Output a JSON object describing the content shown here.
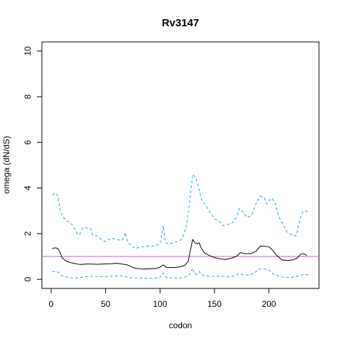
{
  "chart_data": {
    "type": "line",
    "title": "Rv3147",
    "xlabel": "codon",
    "ylabel": "omega (dN/dS)",
    "xlim": [
      -8.5,
      246
    ],
    "ylim": [
      -0.4,
      10.4
    ],
    "xticks": [
      0,
      50,
      100,
      150,
      200
    ],
    "yticks": [
      0,
      2,
      4,
      6,
      8,
      10
    ],
    "grid": false,
    "reference_line": {
      "y": 1,
      "color": "#c060c0"
    },
    "series": [
      {
        "style": "solid",
        "color": "#000000",
        "points": [
          [
            1,
            1.35
          ],
          [
            4,
            1.38
          ],
          [
            6,
            1.35
          ],
          [
            8,
            1.2
          ],
          [
            10,
            0.95
          ],
          [
            13,
            0.82
          ],
          [
            17,
            0.74
          ],
          [
            21,
            0.7
          ],
          [
            25,
            0.66
          ],
          [
            28,
            0.65
          ],
          [
            32,
            0.67
          ],
          [
            36,
            0.67
          ],
          [
            42,
            0.66
          ],
          [
            48,
            0.67
          ],
          [
            55,
            0.68
          ],
          [
            60,
            0.7
          ],
          [
            65,
            0.67
          ],
          [
            70,
            0.63
          ],
          [
            74,
            0.54
          ],
          [
            78,
            0.48
          ],
          [
            83,
            0.45
          ],
          [
            90,
            0.46
          ],
          [
            96,
            0.47
          ],
          [
            100,
            0.53
          ],
          [
            103,
            0.63
          ],
          [
            106,
            0.52
          ],
          [
            112,
            0.51
          ],
          [
            118,
            0.54
          ],
          [
            123,
            0.62
          ],
          [
            126,
            0.8
          ],
          [
            128,
            1.3
          ],
          [
            130,
            1.75
          ],
          [
            132,
            1.6
          ],
          [
            134,
            1.55
          ],
          [
            136,
            1.6
          ],
          [
            138,
            1.35
          ],
          [
            141,
            1.15
          ],
          [
            145,
            1.05
          ],
          [
            150,
            0.95
          ],
          [
            155,
            0.9
          ],
          [
            160,
            0.87
          ],
          [
            165,
            0.92
          ],
          [
            170,
            1.0
          ],
          [
            174,
            1.17
          ],
          [
            178,
            1.12
          ],
          [
            183,
            1.12
          ],
          [
            188,
            1.22
          ],
          [
            192,
            1.45
          ],
          [
            196,
            1.45
          ],
          [
            200,
            1.42
          ],
          [
            203,
            1.3
          ],
          [
            207,
            1.05
          ],
          [
            212,
            0.85
          ],
          [
            217,
            0.82
          ],
          [
            222,
            0.85
          ],
          [
            226,
            0.93
          ],
          [
            229,
            1.1
          ],
          [
            232,
            1.12
          ],
          [
            235,
            1.05
          ]
        ]
      },
      {
        "style": "dashed",
        "color": "#29a3d6",
        "points": [
          [
            1,
            3.7
          ],
          [
            4,
            3.78
          ],
          [
            6,
            3.7
          ],
          [
            8,
            3.1
          ],
          [
            10,
            2.8
          ],
          [
            13,
            2.6
          ],
          [
            17,
            2.5
          ],
          [
            20,
            2.35
          ],
          [
            24,
            2.0
          ],
          [
            26,
            1.95
          ],
          [
            29,
            2.25
          ],
          [
            33,
            2.25
          ],
          [
            36,
            2.25
          ],
          [
            38,
            1.95
          ],
          [
            42,
            1.9
          ],
          [
            46,
            1.75
          ],
          [
            50,
            1.65
          ],
          [
            55,
            1.8
          ],
          [
            60,
            1.75
          ],
          [
            64,
            1.7
          ],
          [
            66,
            1.75
          ],
          [
            68,
            2.05
          ],
          [
            70,
            1.65
          ],
          [
            74,
            1.45
          ],
          [
            78,
            1.35
          ],
          [
            82,
            1.42
          ],
          [
            88,
            1.45
          ],
          [
            94,
            1.45
          ],
          [
            100,
            1.55
          ],
          [
            103,
            2.35
          ],
          [
            105,
            1.6
          ],
          [
            108,
            1.55
          ],
          [
            112,
            1.6
          ],
          [
            116,
            1.65
          ],
          [
            120,
            1.75
          ],
          [
            124,
            2.3
          ],
          [
            127,
            3.3
          ],
          [
            130,
            4.6
          ],
          [
            133,
            4.45
          ],
          [
            135,
            4.1
          ],
          [
            138,
            3.5
          ],
          [
            141,
            3.3
          ],
          [
            145,
            3.0
          ],
          [
            150,
            2.65
          ],
          [
            154,
            2.55
          ],
          [
            158,
            2.35
          ],
          [
            162,
            2.4
          ],
          [
            166,
            2.45
          ],
          [
            170,
            2.7
          ],
          [
            173,
            3.1
          ],
          [
            176,
            2.95
          ],
          [
            180,
            2.7
          ],
          [
            184,
            2.8
          ],
          [
            188,
            3.3
          ],
          [
            192,
            3.65
          ],
          [
            196,
            3.55
          ],
          [
            198,
            3.3
          ],
          [
            201,
            3.5
          ],
          [
            203,
            3.55
          ],
          [
            206,
            3.3
          ],
          [
            209,
            2.75
          ],
          [
            213,
            2.4
          ],
          [
            217,
            2.05
          ],
          [
            221,
            1.95
          ],
          [
            225,
            1.9
          ],
          [
            228,
            2.55
          ],
          [
            231,
            2.95
          ],
          [
            234,
            3.0
          ],
          [
            237,
            2.9
          ]
        ]
      },
      {
        "style": "dashed",
        "color": "#29a3d6",
        "points": [
          [
            1,
            0.33
          ],
          [
            4,
            0.35
          ],
          [
            7,
            0.3
          ],
          [
            10,
            0.15
          ],
          [
            14,
            0.1
          ],
          [
            18,
            0.07
          ],
          [
            24,
            0.06
          ],
          [
            30,
            0.1
          ],
          [
            35,
            0.14
          ],
          [
            42,
            0.12
          ],
          [
            50,
            0.12
          ],
          [
            57,
            0.14
          ],
          [
            62,
            0.16
          ],
          [
            66,
            0.13
          ],
          [
            70,
            0.09
          ],
          [
            78,
            0.05
          ],
          [
            86,
            0.04
          ],
          [
            94,
            0.05
          ],
          [
            100,
            0.08
          ],
          [
            103,
            0.28
          ],
          [
            106,
            0.07
          ],
          [
            115,
            0.05
          ],
          [
            122,
            0.08
          ],
          [
            127,
            0.2
          ],
          [
            130,
            0.48
          ],
          [
            132,
            0.2
          ],
          [
            134,
            0.25
          ],
          [
            136,
            0.35
          ],
          [
            138,
            0.2
          ],
          [
            142,
            0.15
          ],
          [
            148,
            0.13
          ],
          [
            155,
            0.14
          ],
          [
            162,
            0.12
          ],
          [
            168,
            0.15
          ],
          [
            173,
            0.25
          ],
          [
            176,
            0.2
          ],
          [
            182,
            0.18
          ],
          [
            187,
            0.28
          ],
          [
            190,
            0.45
          ],
          [
            196,
            0.45
          ],
          [
            200,
            0.4
          ],
          [
            205,
            0.2
          ],
          [
            212,
            0.1
          ],
          [
            218,
            0.08
          ],
          [
            224,
            0.1
          ],
          [
            229,
            0.18
          ],
          [
            233,
            0.22
          ],
          [
            237,
            0.18
          ]
        ]
      }
    ]
  }
}
